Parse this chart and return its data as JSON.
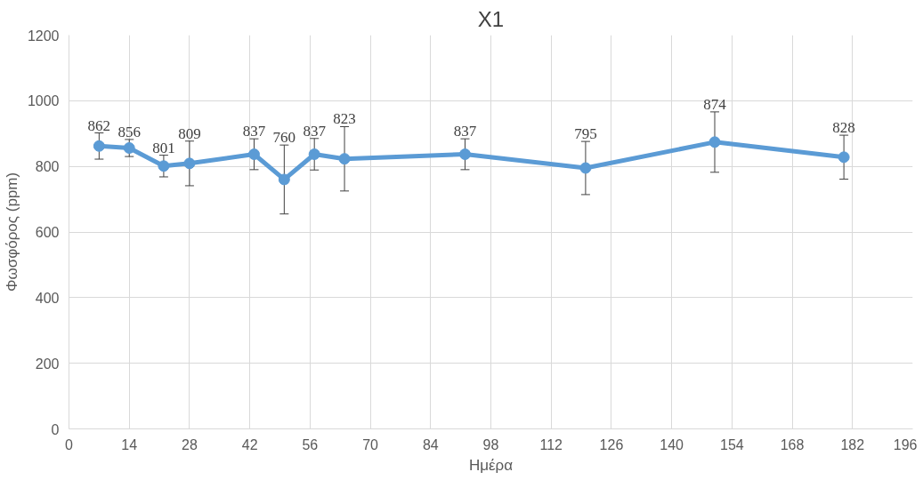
{
  "chart_data": {
    "type": "line",
    "title": "X1",
    "xlabel": "Ημέρα",
    "ylabel": "Φωσφόρος (ppm)",
    "x": [
      7,
      14,
      22,
      28,
      43,
      50,
      57,
      64,
      92,
      120,
      150,
      180
    ],
    "series": [
      {
        "color": "#5b9bd5",
        "values": [
          862,
          856,
          801,
          809,
          837,
          760,
          837,
          823,
          837,
          795,
          874,
          828
        ],
        "errors": [
          40,
          26,
          33,
          68,
          47,
          105,
          48,
          98,
          47,
          81,
          92,
          67
        ]
      }
    ],
    "xlim": [
      0,
      196
    ],
    "xticks": [
      0,
      14,
      28,
      42,
      56,
      70,
      84,
      98,
      112,
      126,
      140,
      154,
      168,
      182,
      196
    ],
    "ylim": [
      0,
      1200
    ],
    "yticks": [
      0,
      200,
      400,
      600,
      800,
      1000,
      1200
    ],
    "grid": true,
    "marker": "circle",
    "line_style": "solid",
    "data_labels": true
  }
}
